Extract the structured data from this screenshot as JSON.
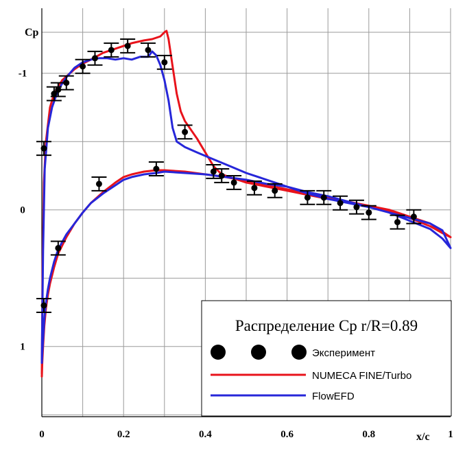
{
  "chart_data": {
    "type": "line",
    "title": "Распределение Cp r/R=0.89",
    "xlabel": "x/c",
    "ylabel": "Cp",
    "xlim": [
      0,
      1
    ],
    "ylim": [
      -1.45,
      1.5
    ],
    "y_inverted": true,
    "x_ticks": [
      {
        "value": 0,
        "label": "0"
      },
      {
        "value": 0.2,
        "label": "0.2"
      },
      {
        "value": 0.4,
        "label": "0.4"
      },
      {
        "value": 0.6,
        "label": "0.6"
      },
      {
        "value": 0.8,
        "label": "0.8"
      },
      {
        "value": 1,
        "label": "1"
      }
    ],
    "y_ticks": [
      {
        "value": -1,
        "label": "-1"
      },
      {
        "value": 0,
        "label": "0"
      },
      {
        "value": 1,
        "label": "1"
      }
    ],
    "x_grid": [
      0,
      0.1,
      0.2,
      0.3,
      0.4,
      0.5,
      0.6,
      0.7,
      0.8,
      0.9,
      1.0
    ],
    "y_grid": [
      -1.3,
      -1.0,
      -0.5,
      0,
      0.5,
      1.0,
      1.5
    ],
    "grid": true,
    "legend_placement": "bottom-right",
    "legend_entries": [
      {
        "name": "Эксперимент",
        "marker": "dot",
        "color": "#000000"
      },
      {
        "name": "NUMECA FINE/Turbo",
        "marker": "line",
        "color": "#e8131b"
      },
      {
        "name": "FlowEFD",
        "marker": "line",
        "color": "#2626d9"
      }
    ],
    "series": [
      {
        "name": "NUMECA FINE/Turbo",
        "color": "#e8131b",
        "x": [
          0.0,
          0.002,
          0.005,
          0.01,
          0.02,
          0.03,
          0.05,
          0.08,
          0.1,
          0.12,
          0.15,
          0.18,
          0.2,
          0.22,
          0.25,
          0.27,
          0.29,
          0.3,
          0.305,
          0.31,
          0.32,
          0.33,
          0.34,
          0.35,
          0.38,
          0.4,
          0.42,
          0.44,
          0.5,
          0.55,
          0.6,
          0.65,
          0.7,
          0.75,
          0.8,
          0.85,
          0.9,
          0.95,
          0.98,
          1.0,
          0.98,
          0.95,
          0.9,
          0.85,
          0.8,
          0.75,
          0.7,
          0.65,
          0.6,
          0.55,
          0.5,
          0.45,
          0.4,
          0.35,
          0.3,
          0.28,
          0.25,
          0.22,
          0.2,
          0.18,
          0.15,
          0.12,
          0.1,
          0.08,
          0.06,
          0.04,
          0.03,
          0.02,
          0.015,
          0.01,
          0.006,
          0.003,
          0.001,
          0.0
        ],
        "y": [
          1.2,
          0.4,
          -0.2,
          -0.5,
          -0.75,
          -0.85,
          -0.95,
          -1.03,
          -1.07,
          -1.1,
          -1.15,
          -1.18,
          -1.2,
          -1.22,
          -1.24,
          -1.25,
          -1.27,
          -1.3,
          -1.31,
          -1.25,
          -1.05,
          -0.85,
          -0.72,
          -0.65,
          -0.52,
          -0.42,
          -0.32,
          -0.26,
          -0.2,
          -0.17,
          -0.14,
          -0.11,
          -0.08,
          -0.06,
          -0.03,
          0.0,
          0.05,
          0.1,
          0.16,
          0.2,
          0.17,
          0.12,
          0.06,
          0.01,
          -0.03,
          -0.06,
          -0.09,
          -0.12,
          -0.15,
          -0.18,
          -0.21,
          -0.24,
          -0.26,
          -0.28,
          -0.29,
          -0.29,
          -0.28,
          -0.26,
          -0.24,
          -0.2,
          -0.13,
          -0.05,
          0.02,
          0.1,
          0.2,
          0.32,
          0.42,
          0.54,
          0.62,
          0.72,
          0.85,
          1.0,
          1.12,
          1.22
        ]
      },
      {
        "name": "FlowEFD",
        "color": "#2626d9",
        "x": [
          0.0,
          0.003,
          0.007,
          0.015,
          0.025,
          0.04,
          0.06,
          0.08,
          0.1,
          0.12,
          0.14,
          0.16,
          0.18,
          0.2,
          0.22,
          0.24,
          0.26,
          0.27,
          0.28,
          0.29,
          0.3,
          0.31,
          0.32,
          0.33,
          0.35,
          0.38,
          0.42,
          0.46,
          0.5,
          0.55,
          0.6,
          0.65,
          0.7,
          0.75,
          0.8,
          0.85,
          0.9,
          0.95,
          0.98,
          1.0,
          0.98,
          0.95,
          0.9,
          0.85,
          0.8,
          0.75,
          0.7,
          0.65,
          0.6,
          0.55,
          0.5,
          0.45,
          0.4,
          0.35,
          0.3,
          0.28,
          0.25,
          0.22,
          0.2,
          0.18,
          0.15,
          0.12,
          0.1,
          0.08,
          0.06,
          0.04,
          0.03,
          0.02,
          0.015,
          0.01,
          0.006,
          0.003,
          0.001,
          0.0
        ],
        "y": [
          1.1,
          0.3,
          -0.3,
          -0.6,
          -0.75,
          -0.88,
          -0.97,
          -1.04,
          -1.08,
          -1.1,
          -1.11,
          -1.11,
          -1.1,
          -1.11,
          -1.1,
          -1.12,
          -1.12,
          -1.16,
          -1.13,
          -1.06,
          -0.95,
          -0.8,
          -0.6,
          -0.5,
          -0.46,
          -0.42,
          -0.37,
          -0.32,
          -0.27,
          -0.22,
          -0.17,
          -0.12,
          -0.08,
          -0.05,
          -0.02,
          0.02,
          0.06,
          0.1,
          0.15,
          0.28,
          0.21,
          0.14,
          0.08,
          0.02,
          -0.02,
          -0.06,
          -0.1,
          -0.13,
          -0.17,
          -0.19,
          -0.22,
          -0.24,
          -0.26,
          -0.27,
          -0.28,
          -0.27,
          -0.26,
          -0.24,
          -0.22,
          -0.18,
          -0.12,
          -0.05,
          0.02,
          0.1,
          0.18,
          0.29,
          0.38,
          0.5,
          0.58,
          0.68,
          0.8,
          0.95,
          1.05,
          1.12
        ]
      }
    ],
    "experiment": {
      "name": "Эксперимент",
      "points": [
        {
          "x": 0.005,
          "y": -0.45
        },
        {
          "x": 0.03,
          "y": -0.85
        },
        {
          "x": 0.04,
          "y": -0.88
        },
        {
          "x": 0.06,
          "y": -0.93
        },
        {
          "x": 0.1,
          "y": -1.05
        },
        {
          "x": 0.13,
          "y": -1.11
        },
        {
          "x": 0.17,
          "y": -1.17
        },
        {
          "x": 0.21,
          "y": -1.2
        },
        {
          "x": 0.26,
          "y": -1.17
        },
        {
          "x": 0.3,
          "y": -1.08
        },
        {
          "x": 0.35,
          "y": -0.57
        },
        {
          "x": 0.005,
          "y": 0.7
        },
        {
          "x": 0.04,
          "y": 0.28
        },
        {
          "x": 0.14,
          "y": -0.19
        },
        {
          "x": 0.28,
          "y": -0.3
        },
        {
          "x": 0.42,
          "y": -0.28
        },
        {
          "x": 0.44,
          "y": -0.25
        },
        {
          "x": 0.47,
          "y": -0.2
        },
        {
          "x": 0.52,
          "y": -0.16
        },
        {
          "x": 0.57,
          "y": -0.14
        },
        {
          "x": 0.65,
          "y": -0.09
        },
        {
          "x": 0.69,
          "y": -0.09
        },
        {
          "x": 0.73,
          "y": -0.05
        },
        {
          "x": 0.77,
          "y": -0.02
        },
        {
          "x": 0.8,
          "y": 0.02
        },
        {
          "x": 0.87,
          "y": 0.09
        },
        {
          "x": 0.91,
          "y": 0.05
        }
      ],
      "error": 0.05
    }
  }
}
